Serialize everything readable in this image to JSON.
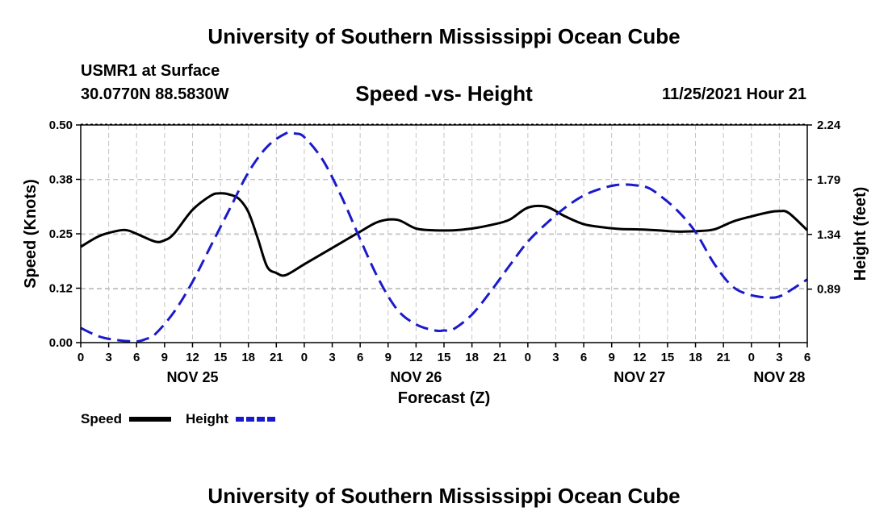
{
  "header": {
    "title": "University of Southern Mississippi Ocean Cube",
    "station": "USMR1 at Surface",
    "coords": "30.0770N  88.5830W",
    "subtitle": "Speed -vs- Height",
    "datetime": "11/25/2021 Hour 21"
  },
  "footer": {
    "title": "University of Southern Mississippi Ocean Cube"
  },
  "chart_data": {
    "type": "line",
    "title": "Speed -vs- Height",
    "xlabel": "Forecast (Z)",
    "ylabel": "Speed (Knots)",
    "y2label": "Height (feet)",
    "xlim": [
      0,
      78
    ],
    "ylim": [
      0,
      0.5
    ],
    "y2lim": [
      0.45,
      2.24
    ],
    "x_ticks": [
      0,
      3,
      6,
      9,
      12,
      15,
      18,
      21,
      24,
      27,
      30,
      33,
      36,
      39,
      42,
      45,
      48,
      51,
      54,
      57,
      60,
      63,
      66,
      69,
      72,
      75,
      78
    ],
    "x_tick_labels": [
      "0",
      "3",
      "6",
      "9",
      "12",
      "15",
      "18",
      "21",
      "0",
      "3",
      "6",
      "9",
      "12",
      "15",
      "18",
      "21",
      "0",
      "3",
      "6",
      "9",
      "12",
      "15",
      "18",
      "21",
      "0",
      "3",
      "6"
    ],
    "date_labels": [
      {
        "x": 12,
        "label": "NOV 25"
      },
      {
        "x": 36,
        "label": "NOV 26"
      },
      {
        "x": 60,
        "label": "NOV 27"
      },
      {
        "x": 75,
        "label": "NOV 28"
      }
    ],
    "y_ticks": [
      0.0,
      0.125,
      0.25,
      0.375,
      0.5
    ],
    "y_tick_labels": [
      "0.00",
      "0.12",
      "0.25",
      "0.38",
      "0.50"
    ],
    "y2_ticks": [
      0.89,
      1.34,
      1.79,
      2.24
    ],
    "y2_tick_labels": [
      "0.89",
      "1.34",
      "1.79",
      "2.24"
    ],
    "grid": true,
    "legend_position": "bottom-left",
    "series": [
      {
        "name": "Speed",
        "axis": "left",
        "color": "#000000",
        "style": "solid",
        "x": [
          0,
          2,
          4,
          5,
          6,
          8,
          9,
          10,
          12,
          14,
          15,
          16,
          17,
          18,
          19,
          20,
          21,
          22,
          24,
          26,
          28,
          30,
          32,
          34,
          36,
          38,
          40,
          42,
          44,
          46,
          48,
          50,
          52,
          54,
          56,
          58,
          60,
          62,
          64,
          66,
          68,
          70,
          72,
          74,
          75,
          76,
          78
        ],
        "values": [
          0.22,
          0.245,
          0.257,
          0.258,
          0.25,
          0.232,
          0.235,
          0.25,
          0.305,
          0.338,
          0.343,
          0.34,
          0.33,
          0.3,
          0.24,
          0.175,
          0.16,
          0.155,
          0.18,
          0.205,
          0.23,
          0.255,
          0.278,
          0.282,
          0.262,
          0.258,
          0.258,
          0.262,
          0.27,
          0.282,
          0.31,
          0.312,
          0.29,
          0.272,
          0.265,
          0.261,
          0.26,
          0.258,
          0.255,
          0.256,
          0.26,
          0.278,
          0.29,
          0.3,
          0.302,
          0.298,
          0.258
        ]
      },
      {
        "name": "Height",
        "axis": "right",
        "color": "#1a1acc",
        "style": "dashed",
        "x": [
          0,
          2,
          4,
          6,
          7,
          8,
          10,
          12,
          14,
          16,
          18,
          20,
          22,
          23,
          24,
          26,
          28,
          30,
          32,
          34,
          36,
          38,
          39,
          40,
          42,
          44,
          46,
          48,
          50,
          52,
          54,
          56,
          58,
          60,
          61,
          62,
          64,
          66,
          68,
          70,
          72,
          74,
          75,
          76,
          78
        ],
        "values": [
          0.57,
          0.5,
          0.47,
          0.46,
          0.48,
          0.52,
          0.7,
          0.95,
          1.25,
          1.55,
          1.85,
          2.06,
          2.17,
          2.17,
          2.14,
          1.95,
          1.65,
          1.3,
          0.97,
          0.72,
          0.6,
          0.55,
          0.55,
          0.56,
          0.68,
          0.87,
          1.08,
          1.28,
          1.43,
          1.56,
          1.66,
          1.72,
          1.75,
          1.74,
          1.72,
          1.67,
          1.54,
          1.36,
          1.1,
          0.91,
          0.84,
          0.82,
          0.83,
          0.87,
          0.97
        ]
      }
    ]
  }
}
